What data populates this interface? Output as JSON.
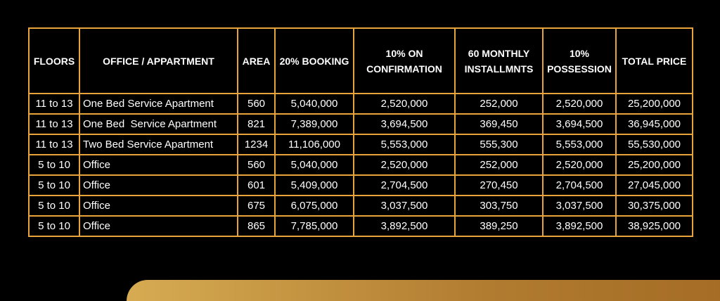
{
  "table": {
    "headers": [
      "FLOORS",
      "OFFICE / APPARTMENT",
      "AREA",
      "20% BOOKING",
      "10% ON CONFIRMATION",
      "60 MONTHLY INSTALLMNTS",
      "10% POSSESSION",
      "TOTAL PRICE"
    ],
    "rows": [
      [
        "11 to 13",
        "One Bed Service Apartment",
        "560",
        "5,040,000",
        "2,520,000",
        "252,000",
        "2,520,000",
        "25,200,000"
      ],
      [
        "11 to 13",
        "One Bed  Service Apartment",
        "821",
        "7,389,000",
        "3,694,500",
        "369,450",
        "3,694,500",
        "36,945,000"
      ],
      [
        "11 to 13",
        "Two Bed Service Apartment",
        "1234",
        "11,106,000",
        "5,553,000",
        "555,300",
        "5,553,000",
        "55,530,000"
      ],
      [
        "5 to 10",
        "Office",
        "560",
        "5,040,000",
        "2,520,000",
        "252,000",
        "2,520,000",
        "25,200,000"
      ],
      [
        "5 to 10",
        "Office",
        "601",
        "5,409,000",
        "2,704,500",
        "270,450",
        "2,704,500",
        "27,045,000"
      ],
      [
        "5 to 10",
        "Office",
        "675",
        "6,075,000",
        "3,037,500",
        "303,750",
        "3,037,500",
        "30,375,000"
      ],
      [
        "5 to 10",
        "Office",
        "865",
        "7,785,000",
        "3,892,500",
        "389,250",
        "3,892,500",
        "38,925,000"
      ]
    ]
  },
  "colors": {
    "border": "#e8a33a",
    "background": "#000000"
  }
}
